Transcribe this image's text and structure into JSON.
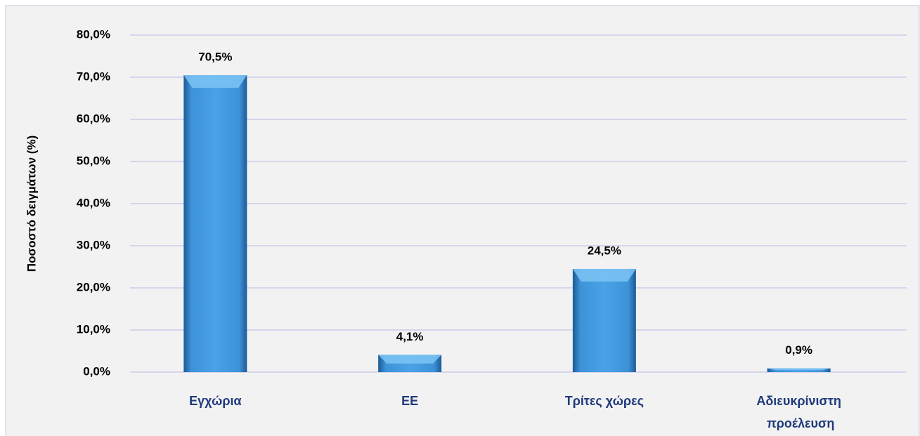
{
  "chart_data": {
    "type": "bar",
    "y_axis_label": "Ποσοστό δειγμάτων (%)",
    "categories": [
      "Εγχώρια",
      "ΕΕ",
      "Τρίτες χώρες",
      "Αδιευκρίνιστη προέλευση"
    ],
    "values": [
      70.5,
      4.1,
      24.5,
      0.9
    ],
    "value_labels": [
      "70,5%",
      "4,1%",
      "24,5%",
      "0,9%"
    ],
    "color": "#3b8fd6",
    "ylim": [
      0,
      80
    ],
    "yticks": [
      {
        "value": 0,
        "label": "0,0%"
      },
      {
        "value": 10,
        "label": "10,0%"
      },
      {
        "value": 20,
        "label": "20,0%"
      },
      {
        "value": 30,
        "label": "30,0%"
      },
      {
        "value": 40,
        "label": "40,0%"
      },
      {
        "value": 50,
        "label": "50,0%"
      },
      {
        "value": 60,
        "label": "60,0%"
      },
      {
        "value": 70,
        "label": "70,0%"
      },
      {
        "value": 80,
        "label": "80,0%"
      }
    ],
    "grid": true
  }
}
